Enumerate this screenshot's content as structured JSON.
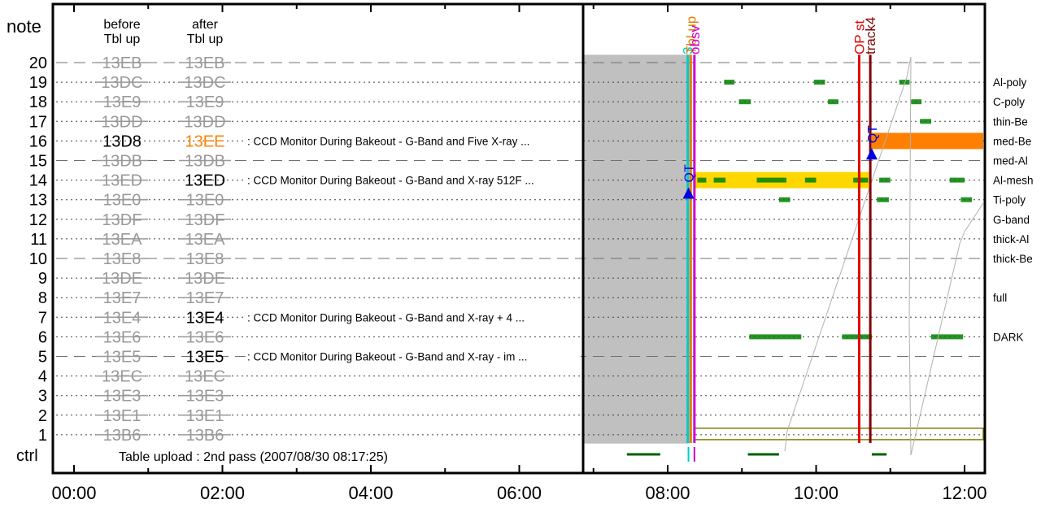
{
  "chart_data": {
    "type": "timeline",
    "title": "",
    "x_ticks": [
      "00:00",
      "02:00",
      "04:00",
      "06:00",
      "08:00",
      "10:00",
      "12:00"
    ],
    "x_range_hours": [
      -0.25,
      12.25
    ],
    "y_range_rows": [
      0,
      21
    ],
    "row_header_label": "note",
    "ctrl_label": "ctrl",
    "col_before": "before\nTbl up",
    "col_after": "after\nTbl up",
    "footer_text": "Table upload : 2nd pass (2007/08/30 08:17:25)",
    "rows": [
      {
        "num": "20",
        "before": "13EB",
        "after": "13EB",
        "dashed": true
      },
      {
        "num": "19",
        "before": "13DC",
        "after": "13DC"
      },
      {
        "num": "18",
        "before": "13E9",
        "after": "13E9"
      },
      {
        "num": "17",
        "before": "13DD",
        "after": "13DD"
      },
      {
        "num": "16",
        "before": "13D8",
        "after": "13EE",
        "before_state": "active",
        "after_state": "changed",
        "desc": ": CCD Monitor During Bakeout - G-Band and Five X-ray ..."
      },
      {
        "num": "15",
        "before": "13DB",
        "after": "13DB",
        "dashed": true
      },
      {
        "num": "14",
        "before": "13ED",
        "after": "13ED",
        "after_state": "active",
        "desc": ": CCD Monitor During Bakeout - G-Band and X-ray 512F ..."
      },
      {
        "num": "13",
        "before": "13E0",
        "after": "13E0"
      },
      {
        "num": "12",
        "before": "13DF",
        "after": "13DF"
      },
      {
        "num": "11",
        "before": "13EA",
        "after": "13EA"
      },
      {
        "num": "10",
        "before": "13E8",
        "after": "13E8",
        "dashed": true
      },
      {
        "num": "9",
        "before": "13DE",
        "after": "13DE"
      },
      {
        "num": "8",
        "before": "13E7",
        "after": "13E7"
      },
      {
        "num": "7",
        "before": "13E4",
        "after": "13E4",
        "after_state": "active",
        "desc": ": CCD Monitor During Bakeout - G-Band and X-ray + 4 ..."
      },
      {
        "num": "6",
        "before": "13E6",
        "after": "13E6"
      },
      {
        "num": "5",
        "before": "13E5",
        "after": "13E5",
        "dashed": true,
        "after_state": "active",
        "desc": ": CCD Monitor During Bakeout - G-Band and X-ray - im ..."
      },
      {
        "num": "4",
        "before": "13EC",
        "after": "13EC"
      },
      {
        "num": "3",
        "before": "13E3",
        "after": "13E3"
      },
      {
        "num": "2",
        "before": "13E1",
        "after": "13E1"
      },
      {
        "num": "1",
        "before": "13B6",
        "after": "13B6"
      }
    ],
    "filters": [
      {
        "label": "Al-poly",
        "row": 19
      },
      {
        "label": "C-poly",
        "row": 18
      },
      {
        "label": "thin-Be",
        "row": 17
      },
      {
        "label": "med-Be",
        "row": 16
      },
      {
        "label": "med-Al",
        "row": 15
      },
      {
        "label": "Al-mesh",
        "row": 14
      },
      {
        "label": "Ti-poly",
        "row": 13
      },
      {
        "label": "G-band",
        "row": 12
      },
      {
        "label": "thick-Al",
        "row": 11
      },
      {
        "label": "thick-Be",
        "row": 10
      },
      {
        "label": "full",
        "row": 8
      },
      {
        "label": "DARK",
        "row": 6
      }
    ],
    "events": [
      {
        "label": "3",
        "t": 8.27,
        "color": "#00cccc"
      },
      {
        "label": "Tbl up",
        "t": 8.31,
        "color": "#e08000"
      },
      {
        "label": "obsv",
        "t": 8.36,
        "color": "#cc00cc"
      },
      {
        "label": "OP st",
        "t": 10.58,
        "color": "#e00000"
      },
      {
        "label": "track4",
        "t": 10.73,
        "color": "#800000"
      }
    ],
    "qt_markers": [
      {
        "label": "QT",
        "t": 8.28,
        "row": 13.3
      },
      {
        "label": "QT",
        "t": 10.75,
        "row": 15.3
      }
    ],
    "gray_region": {
      "t0": 7.0,
      "t1": 8.3,
      "row0": 0.55,
      "row1": 20.4
    },
    "gray_region2": {
      "t0": 8.3,
      "t1": 10.75,
      "row0": 0.55,
      "row1": 20.4
    },
    "bars": [
      {
        "row": 14,
        "t0": 8.36,
        "t1": 10.73,
        "color": "#ffd700"
      },
      {
        "row": 16,
        "t0": 10.75,
        "t1": 12.3,
        "color": "#ff8000"
      }
    ],
    "olive_band": {
      "row": 1,
      "t0": 8.36,
      "t1": 12.3,
      "color": "#808000"
    },
    "green_marks": [
      {
        "row": 19,
        "t0": 8.76,
        "t1": 8.9
      },
      {
        "row": 19,
        "t0": 9.97,
        "t1": 10.12
      },
      {
        "row": 19,
        "t0": 11.12,
        "t1": 11.26
      },
      {
        "row": 18,
        "t0": 8.96,
        "t1": 9.12
      },
      {
        "row": 18,
        "t0": 10.16,
        "t1": 10.3
      },
      {
        "row": 18,
        "t0": 11.28,
        "t1": 11.42
      },
      {
        "row": 17,
        "t0": 11.4,
        "t1": 11.55
      },
      {
        "row": 14,
        "t0": 8.4,
        "t1": 8.52
      },
      {
        "row": 14,
        "t0": 8.62,
        "t1": 8.78
      },
      {
        "row": 14,
        "t0": 9.2,
        "t1": 9.6
      },
      {
        "row": 14,
        "t0": 9.85,
        "t1": 10.0
      },
      {
        "row": 14,
        "t0": 10.5,
        "t1": 10.7
      },
      {
        "row": 14,
        "t0": 10.85,
        "t1": 11.0
      },
      {
        "row": 14,
        "t0": 11.8,
        "t1": 12.0
      },
      {
        "row": 13,
        "t0": 9.5,
        "t1": 9.65
      },
      {
        "row": 13,
        "t0": 10.82,
        "t1": 10.98
      },
      {
        "row": 13,
        "t0": 11.95,
        "t1": 12.1
      },
      {
        "row": 6,
        "t0": 9.1,
        "t1": 9.8
      },
      {
        "row": 6,
        "t0": 10.35,
        "t1": 10.75
      },
      {
        "row": 6,
        "t0": 11.55,
        "t1": 11.98
      }
    ],
    "ctrl_marks": [
      {
        "t0": 7.45,
        "t1": 7.9,
        "color": "#006000"
      },
      {
        "t0": 9.08,
        "t1": 9.5,
        "color": "#006000"
      },
      {
        "t0": 10.75,
        "t1": 10.95,
        "color": "#006000"
      },
      {
        "t0": 8.28,
        "t1": 8.3,
        "color": "#00cccc"
      },
      {
        "t0": 8.36,
        "t1": 8.38,
        "color": "#cc00cc"
      }
    ]
  }
}
